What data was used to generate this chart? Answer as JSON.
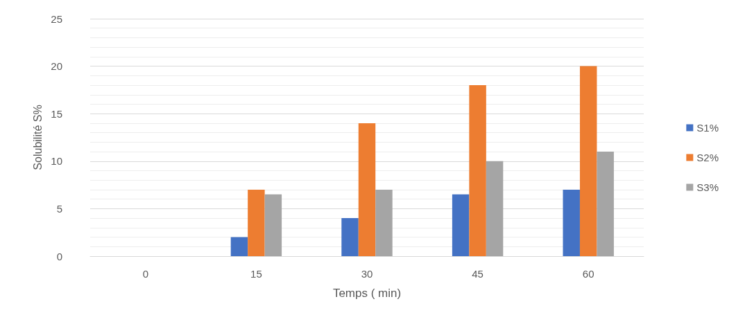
{
  "chart_data": {
    "type": "bar",
    "xlabel": "Temps ( min)",
    "ylabel": "Solubilité S%",
    "categories": [
      "0",
      "15",
      "30",
      "45",
      "60"
    ],
    "series": [
      {
        "name": "S1%",
        "color": "#4472c4",
        "values": [
          0,
          2,
          4,
          6.5,
          7
        ]
      },
      {
        "name": "S2%",
        "color": "#ed7d31",
        "values": [
          0,
          7,
          14,
          18,
          20
        ]
      },
      {
        "name": "S3%",
        "color": "#a5a5a5",
        "values": [
          0,
          6.5,
          7,
          10,
          11
        ]
      }
    ],
    "ylim": [
      0,
      25
    ],
    "yticks": [
      0,
      5,
      10,
      15,
      20,
      25
    ],
    "grid": "y",
    "legend": "right"
  }
}
